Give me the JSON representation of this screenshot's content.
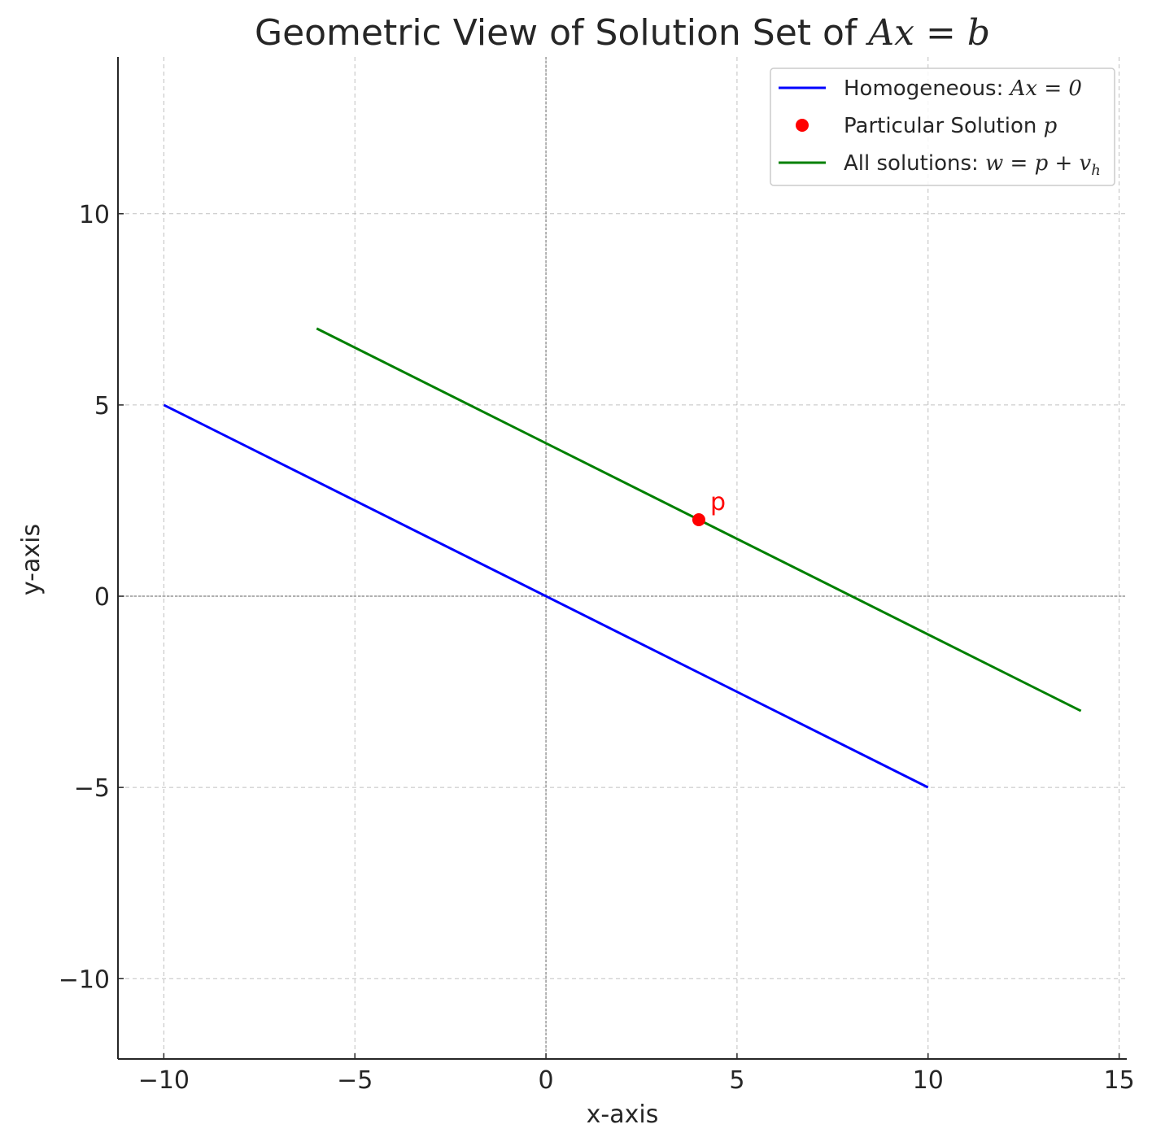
{
  "chart_data": {
    "type": "line",
    "title": "Geometric View of Solution Set of Ax = b",
    "title_parts": {
      "prefix": "Geometric View of Solution Set of ",
      "math": "Ax = b"
    },
    "xlabel": "x-axis",
    "ylabel": "y-axis",
    "xlim": [
      -11.2,
      15.2
    ],
    "ylim": [
      -12.1,
      14.1
    ],
    "xticks": [
      -10,
      -5,
      0,
      5,
      10,
      15
    ],
    "yticks": [
      -10,
      -5,
      0,
      5,
      10
    ],
    "xtick_labels": [
      "−10",
      "−5",
      "0",
      "5",
      "10",
      "15"
    ],
    "ytick_labels": [
      "−10",
      "−5",
      "0",
      "5",
      "10"
    ],
    "grid": true,
    "legend_position": "top-right",
    "series": [
      {
        "name": "Homogeneous: Ax = 0",
        "legend_text": "Homogeneous: ",
        "legend_math": "Ax = 0",
        "kind": "line",
        "color": "#0000ff",
        "x": [
          -10,
          10
        ],
        "y": [
          5,
          -5
        ]
      },
      {
        "name": "Particular Solution p",
        "legend_text": "Particular Solution ",
        "legend_math": "p",
        "kind": "point",
        "color": "#ff0000",
        "x": [
          4
        ],
        "y": [
          2
        ]
      },
      {
        "name": "All solutions: w = p + v_h",
        "legend_text": "All solutions: ",
        "legend_math": "w = p + v",
        "legend_math_sub": "h",
        "kind": "line",
        "color": "#008000",
        "x": [
          -6,
          14
        ],
        "y": [
          7,
          -3
        ]
      }
    ],
    "annotations": [
      {
        "text": "p",
        "x": 4,
        "y": 2,
        "color": "#ff0000"
      }
    ]
  }
}
